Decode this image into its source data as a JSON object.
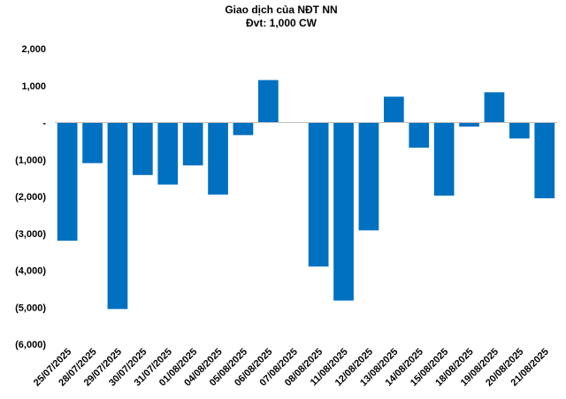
{
  "chart_data": {
    "type": "bar",
    "title": "Giao dịch của NĐT NN",
    "subtitle": "Đvt: 1,000 CW",
    "xlabel": "",
    "ylabel": "",
    "ylim": [
      -6000,
      2000
    ],
    "y_ticks": [
      2000,
      1000,
      0,
      -1000,
      -2000,
      -3000,
      -4000,
      -5000,
      -6000
    ],
    "y_tick_labels": [
      "2,000",
      "1,000",
      "-",
      "(1,000)",
      "(2,000)",
      "(3,000)",
      "(4,000)",
      "(5,000)",
      "(6,000)"
    ],
    "grid": false,
    "legend": "none",
    "bar_color": "#0070C0",
    "categories": [
      "25/07/2025",
      "28/07/2025",
      "29/07/2025",
      "30/07/2025",
      "31/07/2025",
      "01/08/2025",
      "04/08/2025",
      "05/08/2025",
      "06/08/2025",
      "07/08/2025",
      "08/08/2025",
      "11/08/2025",
      "12/08/2025",
      "13/08/2025",
      "14/08/2025",
      "15/08/2025",
      "18/08/2025",
      "19/08/2025",
      "20/08/2025",
      "21/08/2025"
    ],
    "values": [
      -3200,
      -1100,
      -5050,
      -1420,
      -1680,
      -1160,
      -1950,
      -340,
      1150,
      0,
      -3900,
      -4820,
      -2920,
      700,
      -680,
      -1980,
      -110,
      820,
      -430,
      -2050
    ]
  }
}
